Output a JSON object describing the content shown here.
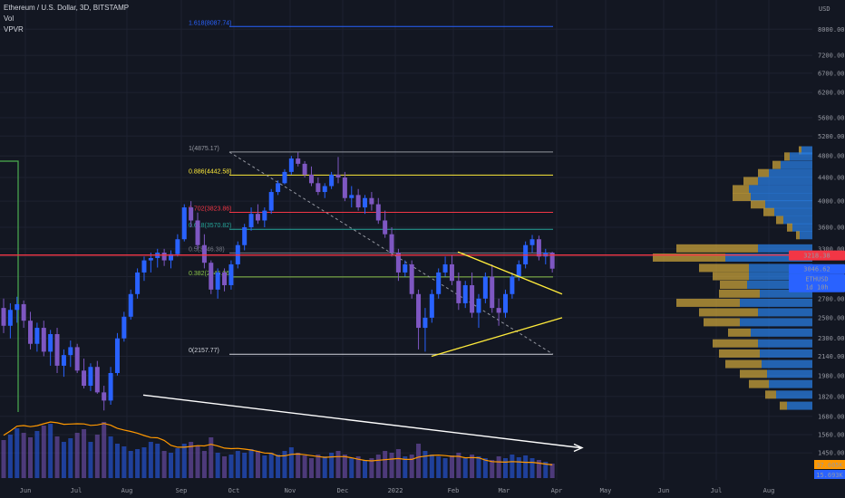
{
  "header": {
    "symbol_line": "Ethereum / U.S. Dollar, 3D, BITSTAMP",
    "indicator_vol": "Vol",
    "indicator_vpvr": "VPVR"
  },
  "currency": "USD",
  "colors": {
    "background": "#131722",
    "grid": "#1e2230",
    "up_candle": "#2962ff",
    "down_candle": "#7e57c2",
    "support_line": "#f23645",
    "triangle": "#ffeb3b",
    "volume_ma": "#ff9800",
    "price_tag": "#2962ff",
    "vpvr_up": "#c8a13a",
    "vpvr_down": "#2a7de1"
  },
  "price_tags": {
    "resistance": "3218.38",
    "last_price": "3046.62",
    "symbol": "ETHUSD",
    "countdown": "1d 10h",
    "vol_ma": "37.605K",
    "vol_last": "15.693K"
  },
  "chart_data": {
    "type": "candlestick",
    "title": "Ethereum / U.S. Dollar, 3D, BITSTAMP",
    "y_axis": {
      "scale": "log",
      "ylim": [
        1300,
        9000
      ],
      "ticks": [
        1450,
        1560,
        1680,
        1820,
        1980,
        2140,
        2300,
        2500,
        2700,
        2950,
        3200,
        3300,
        3600,
        4000,
        4400,
        4800,
        5200,
        5600,
        6200,
        6700,
        7200,
        8000
      ]
    },
    "x_axis": {
      "ticks": [
        "Jun",
        "Jul",
        "Aug",
        "Sep",
        "Oct",
        "Nov",
        "Dec",
        "2022",
        "Feb",
        "Mar",
        "Apr",
        "May",
        "Jun",
        "Jul",
        "Aug"
      ]
    },
    "candles": [
      [
        2600,
        2700,
        2350,
        2420
      ],
      [
        2420,
        2650,
        2300,
        2580
      ],
      [
        2580,
        2720,
        2450,
        2640
      ],
      [
        2640,
        2680,
        2400,
        2470
      ],
      [
        2470,
        2560,
        2200,
        2250
      ],
      [
        2250,
        2450,
        2180,
        2400
      ],
      [
        2400,
        2470,
        2140,
        2180
      ],
      [
        2180,
        2380,
        2060,
        2340
      ],
      [
        2340,
        2400,
        2000,
        2060
      ],
      [
        2060,
        2200,
        1970,
        2150
      ],
      [
        2150,
        2280,
        2050,
        2220
      ],
      [
        2220,
        2250,
        2000,
        2020
      ],
      [
        2020,
        2120,
        1880,
        1900
      ],
      [
        1900,
        2080,
        1860,
        2050
      ],
      [
        2050,
        2100,
        1840,
        1850
      ],
      [
        1850,
        1900,
        1720,
        1790
      ],
      [
        1790,
        2050,
        1760,
        2000
      ],
      [
        2000,
        2350,
        1980,
        2300
      ],
      [
        2300,
        2560,
        2270,
        2510
      ],
      [
        2510,
        2800,
        2480,
        2750
      ],
      [
        2750,
        3050,
        2700,
        3000
      ],
      [
        3000,
        3200,
        2900,
        3150
      ],
      [
        3150,
        3250,
        3000,
        3180
      ],
      [
        3180,
        3300,
        3060,
        3250
      ],
      [
        3250,
        3300,
        3080,
        3150
      ],
      [
        3150,
        3280,
        3050,
        3230
      ],
      [
        3230,
        3500,
        3200,
        3430
      ],
      [
        3430,
        3950,
        3400,
        3900
      ],
      [
        3900,
        4000,
        3600,
        3700
      ],
      [
        3700,
        3820,
        3300,
        3350
      ],
      [
        3350,
        3500,
        3050,
        3120
      ],
      [
        3120,
        3150,
        2750,
        2800
      ],
      [
        2800,
        3050,
        2700,
        3000
      ],
      [
        3000,
        3050,
        2780,
        2850
      ],
      [
        2850,
        3150,
        2800,
        3100
      ],
      [
        3100,
        3400,
        3050,
        3350
      ],
      [
        3350,
        3650,
        3280,
        3600
      ],
      [
        3600,
        3900,
        3550,
        3800
      ],
      [
        3800,
        3950,
        3650,
        3700
      ],
      [
        3700,
        3900,
        3600,
        3850
      ],
      [
        3850,
        4200,
        3800,
        4150
      ],
      [
        4150,
        4350,
        4100,
        4300
      ],
      [
        4300,
        4550,
        4280,
        4500
      ],
      [
        4500,
        4800,
        4450,
        4750
      ],
      [
        4750,
        4868,
        4600,
        4650
      ],
      [
        4650,
        4700,
        4400,
        4450
      ],
      [
        4450,
        4600,
        4250,
        4300
      ],
      [
        4300,
        4400,
        4100,
        4150
      ],
      [
        4150,
        4300,
        4050,
        4250
      ],
      [
        4250,
        4500,
        4200,
        4450
      ],
      [
        4450,
        4780,
        4300,
        4400
      ],
      [
        4400,
        4500,
        4000,
        4050
      ],
      [
        4050,
        4250,
        3900,
        4100
      ],
      [
        4100,
        4200,
        3850,
        3900
      ],
      [
        3900,
        4100,
        3800,
        4050
      ],
      [
        4050,
        4150,
        3850,
        3950
      ],
      [
        3950,
        4050,
        3650,
        3700
      ],
      [
        3700,
        3850,
        3450,
        3500
      ],
      [
        3500,
        3600,
        3200,
        3250
      ],
      [
        3250,
        3300,
        2900,
        3000
      ],
      [
        3000,
        3150,
        2950,
        3100
      ],
      [
        3100,
        3150,
        2700,
        2750
      ],
      [
        2750,
        2800,
        2200,
        2400
      ],
      [
        2400,
        2600,
        2180,
        2500
      ],
      [
        2500,
        2800,
        2450,
        2750
      ],
      [
        2750,
        3050,
        2700,
        3000
      ],
      [
        3000,
        3200,
        2950,
        3100
      ],
      [
        3100,
        3220,
        2850,
        2900
      ],
      [
        2900,
        3000,
        2580,
        2650
      ],
      [
        2650,
        2900,
        2600,
        2850
      ],
      [
        2850,
        3000,
        2500,
        2550
      ],
      [
        2550,
        2750,
        2400,
        2700
      ],
      [
        2700,
        3000,
        2650,
        2950
      ],
      [
        2950,
        3100,
        2550,
        2600
      ],
      [
        2600,
        2700,
        2420,
        2550
      ],
      [
        2550,
        2800,
        2500,
        2750
      ],
      [
        2750,
        3000,
        2700,
        2950
      ],
      [
        2950,
        3150,
        2900,
        3100
      ],
      [
        3100,
        3400,
        3050,
        3350
      ],
      [
        3350,
        3490,
        3250,
        3430
      ],
      [
        3430,
        3480,
        3150,
        3200
      ],
      [
        3200,
        3300,
        3100,
        3250
      ],
      [
        3250,
        3260,
        3000,
        3046.62
      ]
    ],
    "volume": {
      "values": [
        42,
        48,
        55,
        50,
        45,
        52,
        58,
        60,
        46,
        40,
        44,
        50,
        54,
        40,
        48,
        62,
        46,
        38,
        35,
        30,
        32,
        34,
        40,
        38,
        30,
        28,
        33,
        38,
        40,
        36,
        30,
        45,
        28,
        24,
        26,
        30,
        28,
        32,
        30,
        25,
        28,
        26,
        30,
        34,
        28,
        25,
        22,
        26,
        24,
        28,
        30,
        26,
        22,
        24,
        20,
        22,
        26,
        30,
        28,
        32,
        24,
        26,
        38,
        30,
        26,
        24,
        22,
        25,
        28,
        22,
        26,
        24,
        22,
        20,
        24,
        22,
        26,
        23,
        25,
        22,
        20,
        18,
        16
      ],
      "ma_label": "37.605K",
      "last_label": "15.693K"
    },
    "fibonacci": [
      {
        "level_label": "1.618(8087.74)",
        "price": 8087.74,
        "color": "#2962ff"
      },
      {
        "level_label": "1(4875.17)",
        "price": 4875.17,
        "color": "#9598a1"
      },
      {
        "level_label": "0.886(4442.58)",
        "price": 4442.58,
        "color": "#ffeb3b"
      },
      {
        "level_label": "0.702(3823.86)",
        "price": 3823.86,
        "color": "#f23645"
      },
      {
        "level_label": "0.618(3570.82)",
        "price": 3570.82,
        "color": "#26a69a"
      },
      {
        "level_label": "0.5(3246.38)",
        "price": 3246.38,
        "color": "#787b86"
      },
      {
        "level_label": "0.382(2945.96)",
        "price": 2945.96,
        "color": "#8bc34a"
      },
      {
        "level_label": "0(2157.77)",
        "price": 2157.77,
        "color": "#d1d4dc"
      }
    ],
    "horizontal_line": {
      "price": 3218.38
    },
    "vpvr": [
      {
        "price": 4900,
        "up": 3,
        "down": 12
      },
      {
        "price": 4780,
        "up": 6,
        "down": 25
      },
      {
        "price": 4620,
        "up": 9,
        "down": 35
      },
      {
        "price": 4470,
        "up": 12,
        "down": 48
      },
      {
        "price": 4330,
        "up": 16,
        "down": 60
      },
      {
        "price": 4190,
        "up": 18,
        "down": 70
      },
      {
        "price": 4060,
        "up": 20,
        "down": 68
      },
      {
        "price": 3940,
        "up": 16,
        "down": 52
      },
      {
        "price": 3820,
        "up": 12,
        "down": 42
      },
      {
        "price": 3700,
        "up": 8,
        "down": 32
      },
      {
        "price": 3590,
        "up": 6,
        "down": 22
      },
      {
        "price": 3480,
        "up": 4,
        "down": 14
      },
      {
        "price": 3300,
        "up": 90,
        "down": 60
      },
      {
        "price": 3180,
        "up": 80,
        "down": 96
      },
      {
        "price": 3050,
        "up": 55,
        "down": 70
      },
      {
        "price": 2950,
        "up": 40,
        "down": 70
      },
      {
        "price": 2850,
        "up": 30,
        "down": 72
      },
      {
        "price": 2750,
        "up": 45,
        "down": 58
      },
      {
        "price": 2650,
        "up": 70,
        "down": 80
      },
      {
        "price": 2550,
        "up": 65,
        "down": 60
      },
      {
        "price": 2450,
        "up": 40,
        "down": 80
      },
      {
        "price": 2350,
        "up": 25,
        "down": 68
      },
      {
        "price": 2250,
        "up": 50,
        "down": 60
      },
      {
        "price": 2160,
        "up": 45,
        "down": 58
      },
      {
        "price": 2070,
        "up": 40,
        "down": 56
      },
      {
        "price": 1990,
        "up": 30,
        "down": 50
      },
      {
        "price": 1910,
        "up": 22,
        "down": 48
      },
      {
        "price": 1830,
        "up": 12,
        "down": 40
      },
      {
        "price": 1750,
        "up": 8,
        "down": 28
      }
    ]
  }
}
